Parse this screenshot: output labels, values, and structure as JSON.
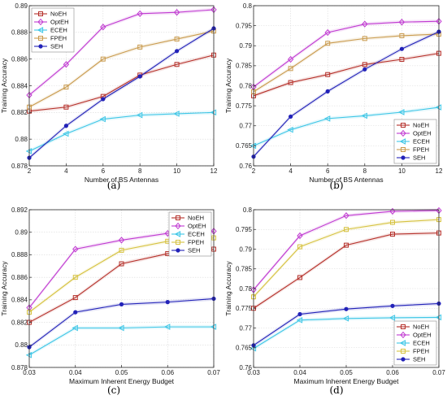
{
  "chart_data": [
    {
      "type": "line",
      "caption": "(a)",
      "xlabel": "Number of BS Antennas",
      "ylabel": "Training Accuracy",
      "x": [
        2,
        4,
        6,
        8,
        10,
        12
      ],
      "xticks": [
        2,
        4,
        6,
        8,
        10,
        12
      ],
      "xlim": [
        2,
        12
      ],
      "ylim": [
        0.878,
        0.89
      ],
      "yticks": [
        0.878,
        0.88,
        0.882,
        0.884,
        0.886,
        0.888,
        0.89
      ],
      "ytick_labels": [
        "0.878",
        "0.88",
        "0.882",
        "0.884",
        "0.886",
        "0.888",
        "0.89"
      ],
      "legend_position": "top-left",
      "series": [
        {
          "name": "NoEH",
          "color": "#b5302a",
          "marker": "square",
          "values": [
            0.8821,
            0.8824,
            0.8832,
            0.8848,
            0.8856,
            0.8863
          ]
        },
        {
          "name": "OptEH",
          "color": "#c03ad1",
          "marker": "diamond",
          "values": [
            0.8833,
            0.8856,
            0.8884,
            0.8894,
            0.8895,
            0.8897
          ]
        },
        {
          "name": "ECEH",
          "color": "#3dc6e6",
          "marker": "triangle-left",
          "values": [
            0.8791,
            0.8804,
            0.8815,
            0.8818,
            0.8819,
            0.882
          ]
        },
        {
          "name": "FPEH",
          "color": "#c99a4d",
          "marker": "square",
          "values": [
            0.8824,
            0.8839,
            0.886,
            0.8869,
            0.8875,
            0.8881
          ]
        },
        {
          "name": "SEH",
          "color": "#2222b8",
          "marker": "dot",
          "values": [
            0.8786,
            0.881,
            0.883,
            0.8847,
            0.8866,
            0.8883
          ]
        }
      ]
    },
    {
      "type": "line",
      "caption": "(b)",
      "xlabel": "Number of BS Antennas",
      "ylabel": "Training Accuracy",
      "x": [
        2,
        4,
        6,
        8,
        10,
        12
      ],
      "xticks": [
        2,
        4,
        6,
        8,
        10,
        12
      ],
      "xlim": [
        2,
        12
      ],
      "ylim": [
        0.76,
        0.8
      ],
      "yticks": [
        0.76,
        0.765,
        0.77,
        0.775,
        0.78,
        0.785,
        0.79,
        0.795,
        0.8
      ],
      "ytick_labels": [
        "0.76",
        "0.765",
        "0.77",
        "0.775",
        "0.78",
        "0.785",
        "0.79",
        "0.795",
        "0.8"
      ],
      "legend_position": "bottom-right",
      "series": [
        {
          "name": "NoEH",
          "color": "#b5302a",
          "marker": "square",
          "values": [
            0.7775,
            0.7808,
            0.7828,
            0.7853,
            0.7866,
            0.7881
          ]
        },
        {
          "name": "OptEH",
          "color": "#c03ad1",
          "marker": "diamond",
          "values": [
            0.7797,
            0.7866,
            0.7933,
            0.7954,
            0.7959,
            0.7961
          ]
        },
        {
          "name": "ECEH",
          "color": "#3dc6e6",
          "marker": "triangle-left",
          "values": [
            0.765,
            0.769,
            0.7718,
            0.7725,
            0.7734,
            0.7746
          ]
        },
        {
          "name": "FPEH",
          "color": "#c99a4d",
          "marker": "square",
          "values": [
            0.7785,
            0.7843,
            0.7906,
            0.7918,
            0.7925,
            0.7929
          ]
        },
        {
          "name": "SEH",
          "color": "#2222b8",
          "marker": "dot",
          "values": [
            0.7623,
            0.7723,
            0.7786,
            0.7841,
            0.7892,
            0.7935
          ]
        }
      ]
    },
    {
      "type": "line",
      "caption": "(c)",
      "xlabel": "Maximum Inherent Energy Budget",
      "ylabel": "Training Accuracy",
      "x": [
        0.03,
        0.04,
        0.05,
        0.06,
        0.07
      ],
      "xticks": [
        0.03,
        0.04,
        0.05,
        0.06,
        0.07
      ],
      "xlim": [
        0.03,
        0.07
      ],
      "ylim": [
        0.878,
        0.892
      ],
      "yticks": [
        0.878,
        0.88,
        0.882,
        0.884,
        0.886,
        0.888,
        0.89,
        0.892
      ],
      "ytick_labels": [
        "0.878",
        "0.88",
        "0.882",
        "0.884",
        "0.886",
        "0.888",
        "0.89",
        "0.892"
      ],
      "legend_position": "top-right",
      "series": [
        {
          "name": "NoEH",
          "color": "#b5302a",
          "marker": "square",
          "values": [
            0.882,
            0.8842,
            0.8872,
            0.8881,
            0.8885
          ]
        },
        {
          "name": "OptEH",
          "color": "#c03ad1",
          "marker": "diamond",
          "values": [
            0.8833,
            0.8885,
            0.8893,
            0.8899,
            0.8901
          ]
        },
        {
          "name": "ECEH",
          "color": "#3dc6e6",
          "marker": "triangle-left",
          "values": [
            0.8791,
            0.8815,
            0.8815,
            0.8816,
            0.8816
          ]
        },
        {
          "name": "FPEH",
          "color": "#d6c240",
          "marker": "square",
          "values": [
            0.8829,
            0.886,
            0.8884,
            0.8892,
            0.8895
          ]
        },
        {
          "name": "SEH",
          "color": "#2222b8",
          "marker": "dot",
          "values": [
            0.8798,
            0.8829,
            0.8836,
            0.8838,
            0.8841
          ]
        }
      ]
    },
    {
      "type": "line",
      "caption": "(d)",
      "xlabel": "Maximum Inherent Energy Budget",
      "ylabel": "Training Accuracy",
      "x": [
        0.03,
        0.04,
        0.05,
        0.06,
        0.07
      ],
      "xticks": [
        0.03,
        0.04,
        0.05,
        0.06,
        0.07
      ],
      "xlim": [
        0.03,
        0.07
      ],
      "ylim": [
        0.76,
        0.8
      ],
      "yticks": [
        0.76,
        0.765,
        0.77,
        0.775,
        0.78,
        0.785,
        0.79,
        0.795,
        0.8
      ],
      "ytick_labels": [
        "0.76",
        "0.765",
        "0.77",
        "0.775",
        "0.78",
        "0.785",
        "0.79",
        "0.795",
        "0.8"
      ],
      "legend_position": "bottom-right",
      "series": [
        {
          "name": "NoEH",
          "color": "#b5302a",
          "marker": "square",
          "values": [
            0.775,
            0.7828,
            0.791,
            0.7938,
            0.7941
          ]
        },
        {
          "name": "OptEH",
          "color": "#c03ad1",
          "marker": "diamond",
          "values": [
            0.7797,
            0.7934,
            0.7985,
            0.7996,
            0.7998
          ]
        },
        {
          "name": "ECEH",
          "color": "#3dc6e6",
          "marker": "triangle-left",
          "values": [
            0.7648,
            0.772,
            0.7724,
            0.7726,
            0.7727
          ]
        },
        {
          "name": "FPEH",
          "color": "#d6c240",
          "marker": "square",
          "values": [
            0.7779,
            0.7906,
            0.795,
            0.7968,
            0.7975
          ]
        },
        {
          "name": "SEH",
          "color": "#2222b8",
          "marker": "dot",
          "values": [
            0.7656,
            0.7735,
            0.7748,
            0.7756,
            0.7762
          ]
        }
      ]
    }
  ]
}
